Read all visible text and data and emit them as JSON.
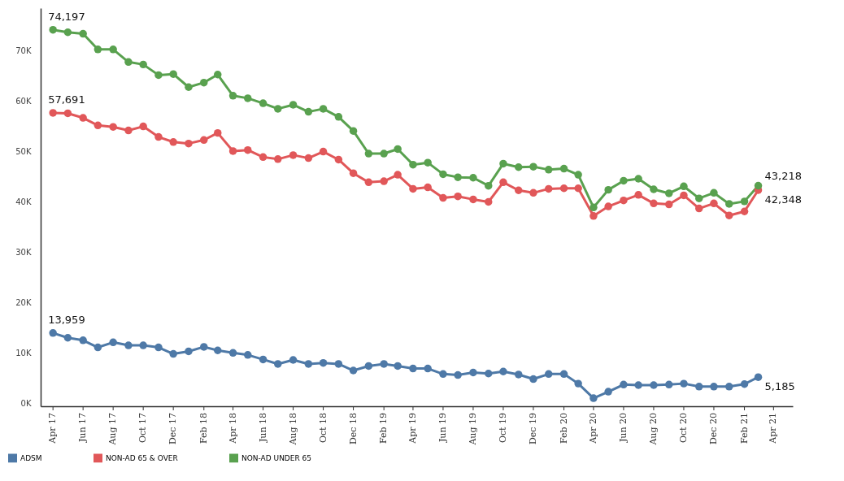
{
  "chart_data": {
    "type": "line",
    "x": [
      "2017-04",
      "2017-05",
      "2017-06",
      "2017-07",
      "2017-08",
      "2017-09",
      "2017-10",
      "2017-11",
      "2017-12",
      "2018-01",
      "2018-02",
      "2018-03",
      "2018-04",
      "2018-05",
      "2018-06",
      "2018-07",
      "2018-08",
      "2018-09",
      "2018-10",
      "2018-11",
      "2018-12",
      "2019-01",
      "2019-02",
      "2019-03",
      "2019-04",
      "2019-05",
      "2019-06",
      "2019-07",
      "2019-08",
      "2019-09",
      "2019-10",
      "2019-11",
      "2019-12",
      "2020-01",
      "2020-02",
      "2020-03",
      "2020-04",
      "2020-05",
      "2020-06",
      "2020-07",
      "2020-08",
      "2020-09",
      "2020-10",
      "2020-11",
      "2020-12",
      "2021-01",
      "2021-02",
      "2021-03"
    ],
    "series": [
      {
        "name": "ADSM",
        "color": "#4e79a7",
        "values": [
          13959,
          13000,
          12500,
          11100,
          12100,
          11500,
          11500,
          11100,
          9800,
          10300,
          11200,
          10500,
          10000,
          9600,
          8700,
          7800,
          8600,
          7800,
          8000,
          7800,
          6500,
          7400,
          7800,
          7400,
          6900,
          6900,
          5800,
          5600,
          6100,
          5900,
          6300,
          5700,
          4800,
          5800,
          5800,
          3900,
          1000,
          2300,
          3700,
          3600,
          3600,
          3700,
          3900,
          3300,
          3300,
          3300,
          3800,
          5185
        ]
      },
      {
        "name": "NON-AD 65 & OVER",
        "color": "#e15759",
        "values": [
          57691,
          57600,
          56700,
          55200,
          54900,
          54200,
          55000,
          52900,
          51900,
          51600,
          52300,
          53700,
          50100,
          50300,
          48900,
          48500,
          49300,
          48700,
          50000,
          48400,
          45700,
          43900,
          44100,
          45400,
          42600,
          42900,
          40800,
          41100,
          40500,
          40000,
          43900,
          42300,
          41800,
          42600,
          42700,
          42700,
          37200,
          39100,
          40300,
          41400,
          39700,
          39500,
          41300,
          38700,
          39700,
          37300,
          38100,
          42348
        ]
      },
      {
        "name": "NON-AD UNDER 65",
        "color": "#59a14f",
        "values": [
          74197,
          73700,
          73400,
          70300,
          70300,
          67800,
          67300,
          65200,
          65400,
          62800,
          63700,
          65300,
          61100,
          60600,
          59600,
          58500,
          59300,
          57900,
          58500,
          56900,
          54100,
          49600,
          49600,
          50500,
          47400,
          47800,
          45500,
          44900,
          44800,
          43200,
          47600,
          46900,
          47000,
          46400,
          46600,
          45400,
          38900,
          42400,
          44200,
          44600,
          42500,
          41700,
          43100,
          40700,
          41800,
          39600,
          40100,
          43218
        ]
      }
    ],
    "ylim": [
      -600,
      78500
    ],
    "yticks": [
      {
        "value": 0,
        "label": "0K"
      },
      {
        "value": 10000,
        "label": "10K"
      },
      {
        "value": 20000,
        "label": "20K"
      },
      {
        "value": 30000,
        "label": "30K"
      },
      {
        "value": 40000,
        "label": "40K"
      },
      {
        "value": 50000,
        "label": "50K"
      },
      {
        "value": 60000,
        "label": "60K"
      },
      {
        "value": 70000,
        "label": "70K"
      }
    ],
    "xlim": [
      "2017-03-07",
      "2021-05-10"
    ],
    "xticks": [
      {
        "value": "2017-04",
        "label": "Apr 17"
      },
      {
        "value": "2017-06",
        "label": "Jun 17"
      },
      {
        "value": "2017-08",
        "label": "Aug 17"
      },
      {
        "value": "2017-10",
        "label": "Oct 17"
      },
      {
        "value": "2017-12",
        "label": "Dec 17"
      },
      {
        "value": "2018-02",
        "label": "Feb 18"
      },
      {
        "value": "2018-04",
        "label": "Apr 18"
      },
      {
        "value": "2018-06",
        "label": "Jun 18"
      },
      {
        "value": "2018-08",
        "label": "Aug 18"
      },
      {
        "value": "2018-10",
        "label": "Oct 18"
      },
      {
        "value": "2018-12",
        "label": "Dec 18"
      },
      {
        "value": "2019-02",
        "label": "Feb 19"
      },
      {
        "value": "2019-04",
        "label": "Apr 19"
      },
      {
        "value": "2019-06",
        "label": "Jun 19"
      },
      {
        "value": "2019-08",
        "label": "Aug 19"
      },
      {
        "value": "2019-10",
        "label": "Oct 19"
      },
      {
        "value": "2019-12",
        "label": "Dec 19"
      },
      {
        "value": "2020-02",
        "label": "Feb 20"
      },
      {
        "value": "2020-04",
        "label": "Apr 20"
      },
      {
        "value": "2020-06",
        "label": "Jun 20"
      },
      {
        "value": "2020-08",
        "label": "Aug 20"
      },
      {
        "value": "2020-10",
        "label": "Oct 20"
      },
      {
        "value": "2020-12",
        "label": "Dec 20"
      },
      {
        "value": "2021-02",
        "label": "Feb 21"
      },
      {
        "value": "2021-04",
        "label": "Apr 21"
      }
    ],
    "annotations": [
      {
        "text": "13,959",
        "x": "2017-04",
        "y": 13959
      },
      {
        "text": "57,691",
        "x": "2017-04",
        "y": 57691
      },
      {
        "text": "74,197",
        "x": "2017-04",
        "y": 74197
      },
      {
        "text": "5,185",
        "x": "2021-03",
        "y": 5185
      },
      {
        "text": "42,348",
        "x": "2021-03",
        "y": 42348
      },
      {
        "text": "43,218",
        "x": "2021-03",
        "y": 43218
      }
    ],
    "grid": false,
    "legend": "bottom left",
    "marker": "circle",
    "line_style": "solid"
  }
}
